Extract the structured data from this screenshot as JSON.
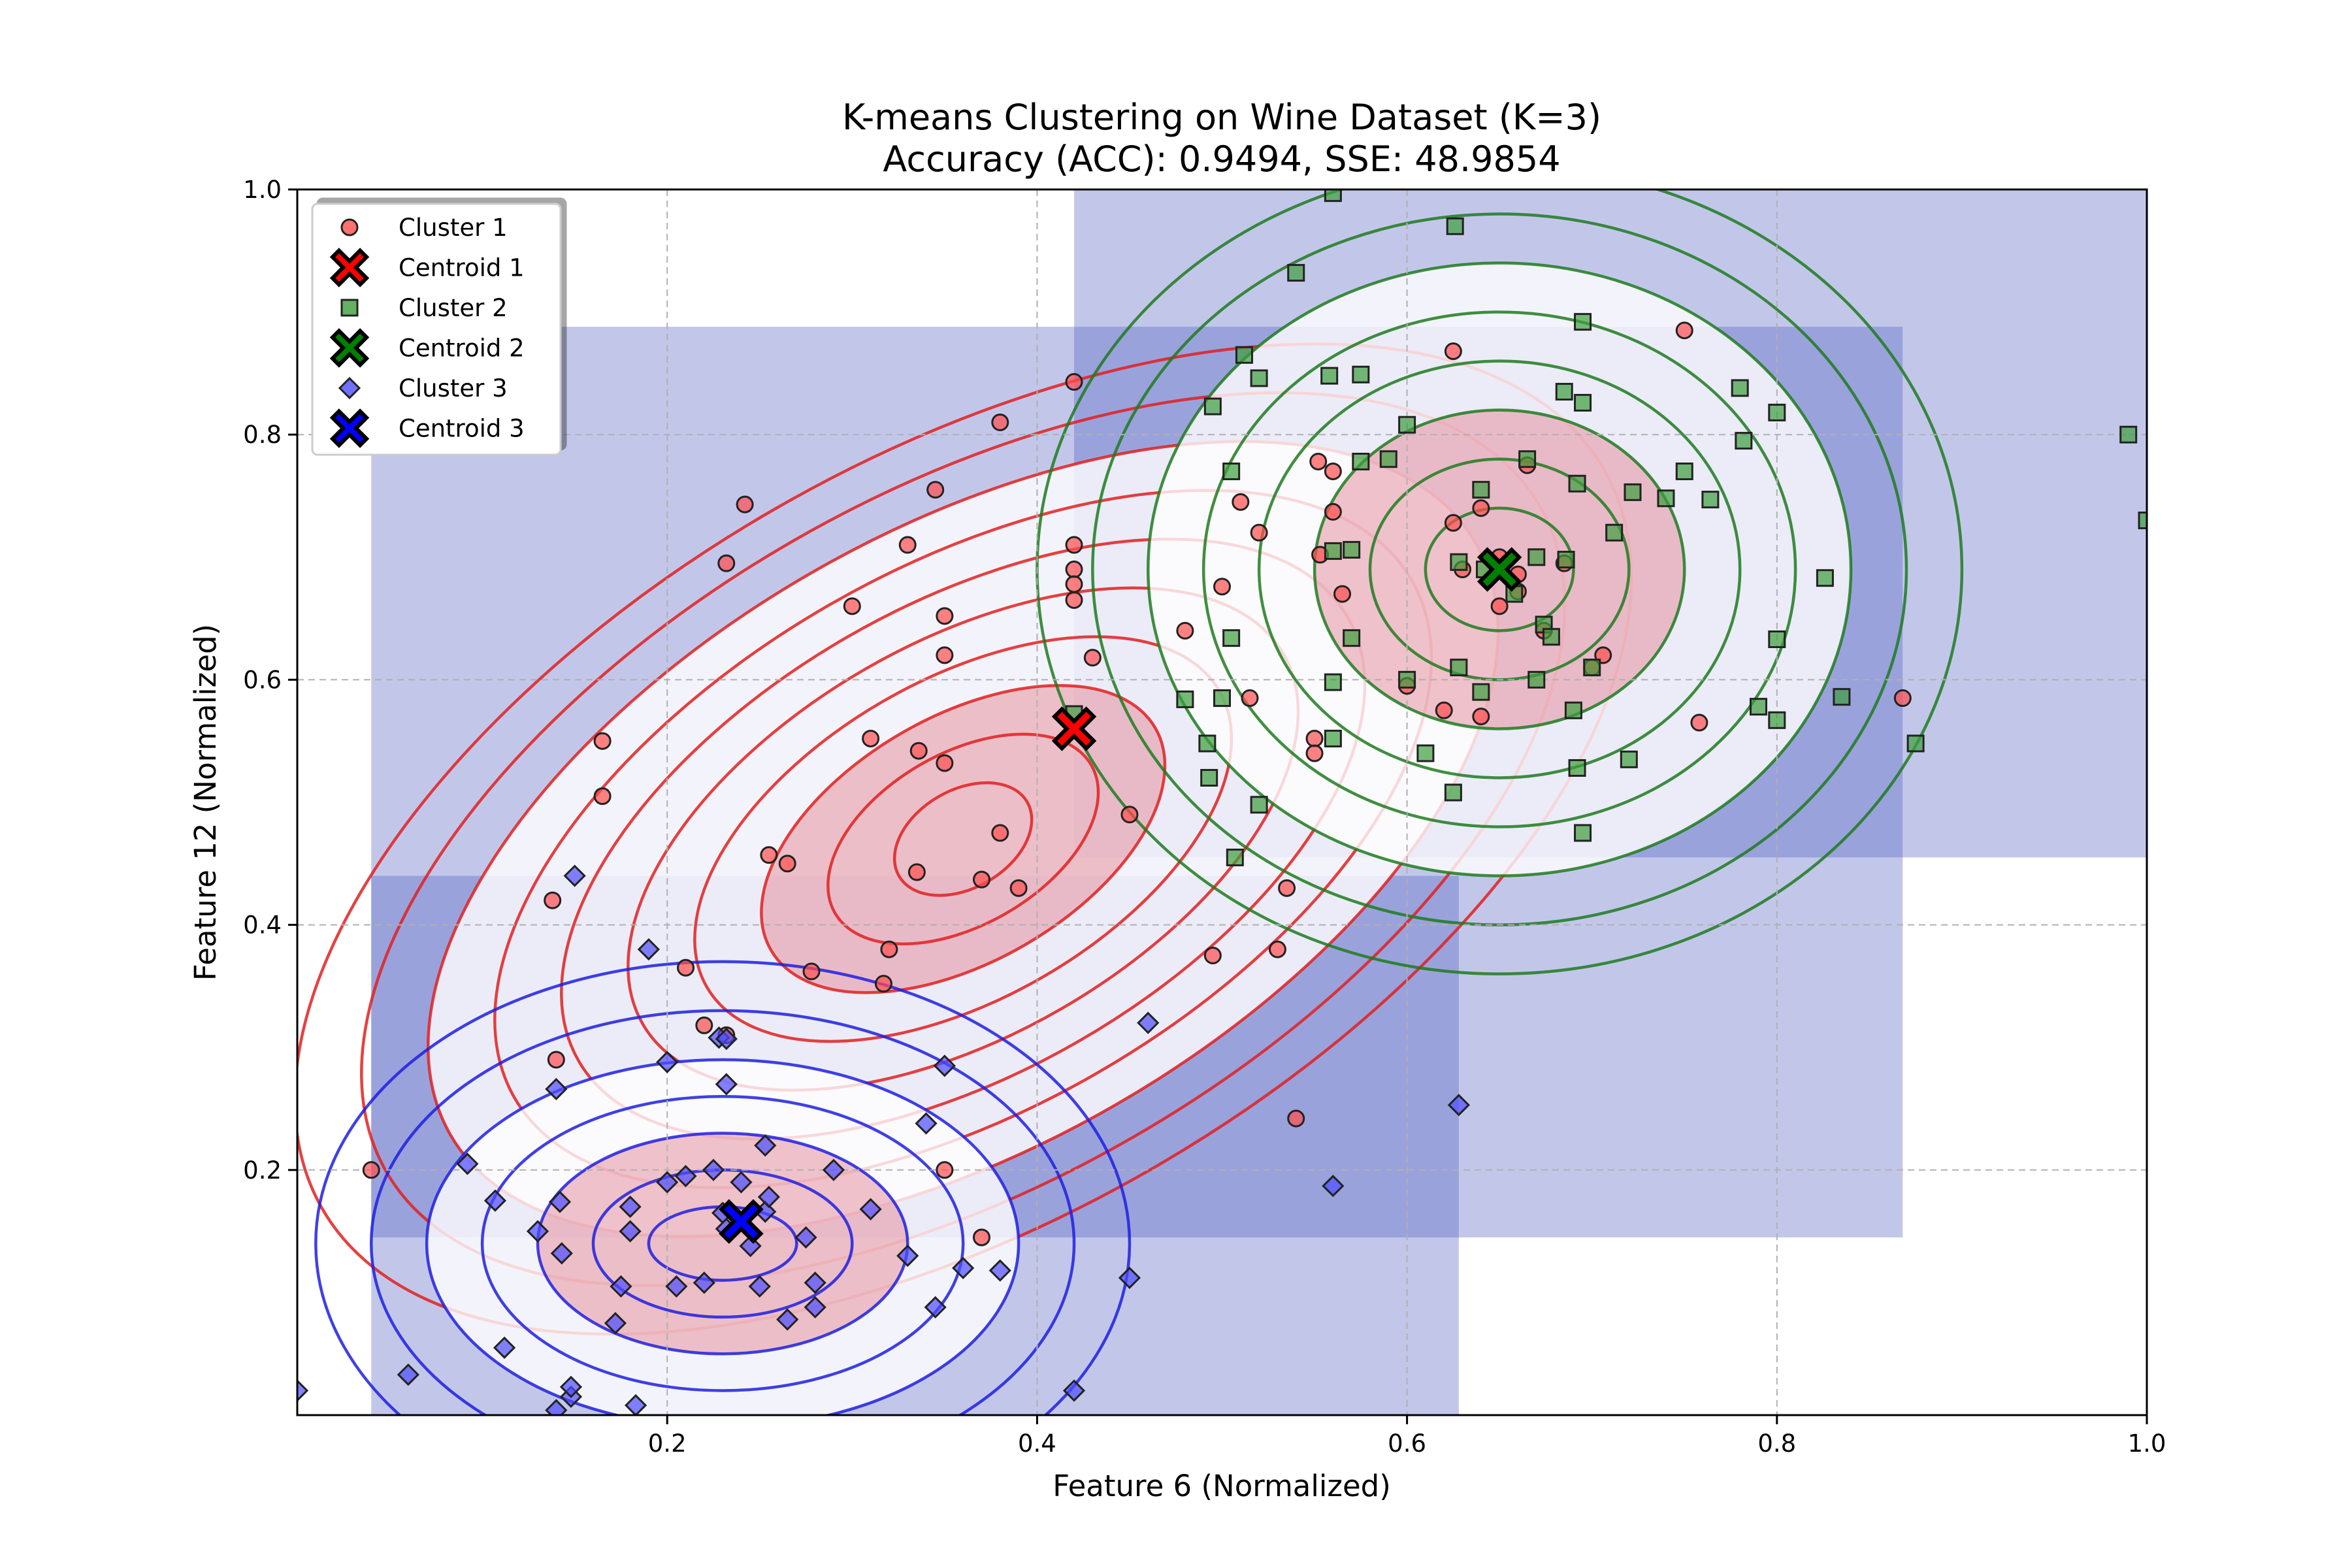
{
  "chart_data": {
    "type": "scatter",
    "title": "K-means Clustering on Wine Dataset (K=3)",
    "subtitle": "Accuracy (ACC): 0.9494, SSE: 48.9854",
    "xlabel": "Feature 6 (Normalized)",
    "ylabel": "Feature 12 (Normalized)",
    "xlim": [
      0,
      1
    ],
    "ylim": [
      0,
      1
    ],
    "x_ticks": [
      "0.2",
      "0.4",
      "0.6",
      "0.8",
      "1.0"
    ],
    "y_ticks": [
      "0.2",
      "0.4",
      "0.6",
      "0.8",
      "1.0"
    ],
    "grid": true,
    "legend_position": "top-left",
    "colors": {
      "cluster_1": "#ff4d4d",
      "cluster_2": "#3d9e3d",
      "cluster_3": "#4d4dff",
      "centroid_1": "#ff0000",
      "centroid_2": "#008000",
      "centroid_3": "#0000ff",
      "region": "#4f5fc2",
      "density_fill": "#e6919f"
    },
    "regions": [
      {
        "x": [
          0.04,
          0.42
        ],
        "y": [
          0.145,
          0.888
        ]
      },
      {
        "x": [
          0.04,
          0.628
        ],
        "y": [
          0.0,
          0.44
        ]
      },
      {
        "x": [
          0.42,
          1.0
        ],
        "y": [
          0.455,
          1.0
        ]
      },
      {
        "x": [
          0.42,
          0.868
        ],
        "y": [
          0.145,
          0.888
        ]
      }
    ],
    "series": [
      {
        "name": "Cluster 1",
        "marker": "circle",
        "points": [
          [
            0.04,
            0.2
          ],
          [
            0.14,
            0.29
          ],
          [
            0.138,
            0.42
          ],
          [
            0.165,
            0.55
          ],
          [
            0.165,
            0.505
          ],
          [
            0.21,
            0.365
          ],
          [
            0.22,
            0.318
          ],
          [
            0.232,
            0.31
          ],
          [
            0.232,
            0.695
          ],
          [
            0.242,
            0.743
          ],
          [
            0.255,
            0.457
          ],
          [
            0.265,
            0.45
          ],
          [
            0.278,
            0.362
          ],
          [
            0.3,
            0.66
          ],
          [
            0.31,
            0.552
          ],
          [
            0.317,
            0.352
          ],
          [
            0.32,
            0.38
          ],
          [
            0.33,
            0.71
          ],
          [
            0.335,
            0.443
          ],
          [
            0.336,
            0.542
          ],
          [
            0.345,
            0.755
          ],
          [
            0.35,
            0.62
          ],
          [
            0.35,
            0.652
          ],
          [
            0.35,
            0.532
          ],
          [
            0.35,
            0.2
          ],
          [
            0.37,
            0.145
          ],
          [
            0.37,
            0.437
          ],
          [
            0.38,
            0.475
          ],
          [
            0.38,
            0.81
          ],
          [
            0.39,
            0.43
          ],
          [
            0.42,
            0.843
          ],
          [
            0.42,
            0.71
          ],
          [
            0.42,
            0.69
          ],
          [
            0.42,
            0.678
          ],
          [
            0.42,
            0.665
          ],
          [
            0.43,
            0.618
          ],
          [
            0.45,
            0.49
          ],
          [
            0.48,
            0.64
          ],
          [
            0.495,
            0.375
          ],
          [
            0.5,
            0.676
          ],
          [
            0.51,
            0.745
          ],
          [
            0.515,
            0.585
          ],
          [
            0.52,
            0.72
          ],
          [
            0.53,
            0.38
          ],
          [
            0.535,
            0.43
          ],
          [
            0.54,
            0.242
          ],
          [
            0.55,
            0.552
          ],
          [
            0.55,
            0.54
          ],
          [
            0.552,
            0.778
          ],
          [
            0.553,
            0.702
          ],
          [
            0.56,
            0.737
          ],
          [
            0.56,
            0.77
          ],
          [
            0.565,
            0.67
          ],
          [
            0.6,
            0.595
          ],
          [
            0.62,
            0.575
          ],
          [
            0.625,
            0.728
          ],
          [
            0.63,
            0.69
          ],
          [
            0.64,
            0.57
          ],
          [
            0.64,
            0.74
          ],
          [
            0.65,
            0.66
          ],
          [
            0.65,
            0.7
          ],
          [
            0.66,
            0.686
          ],
          [
            0.66,
            0.672
          ],
          [
            0.665,
            0.775
          ],
          [
            0.674,
            0.64
          ],
          [
            0.685,
            0.695
          ],
          [
            0.7,
            0.61
          ],
          [
            0.706,
            0.62
          ],
          [
            0.75,
            0.885
          ],
          [
            0.758,
            0.565
          ],
          [
            0.868,
            0.585
          ],
          [
            0.625,
            0.868
          ]
        ]
      },
      {
        "name": "Cluster 2",
        "marker": "square",
        "points": [
          [
            0.42,
            0.572
          ],
          [
            0.48,
            0.584
          ],
          [
            0.492,
            0.548
          ],
          [
            0.493,
            0.52
          ],
          [
            0.495,
            0.823
          ],
          [
            0.5,
            0.585
          ],
          [
            0.505,
            0.634
          ],
          [
            0.505,
            0.77
          ],
          [
            0.507,
            0.455
          ],
          [
            0.512,
            0.865
          ],
          [
            0.52,
            0.846
          ],
          [
            0.52,
            0.498
          ],
          [
            0.54,
            0.932
          ],
          [
            0.558,
            0.848
          ],
          [
            0.56,
            0.997
          ],
          [
            0.56,
            0.705
          ],
          [
            0.56,
            0.552
          ],
          [
            0.56,
            0.598
          ],
          [
            0.57,
            0.706
          ],
          [
            0.57,
            0.634
          ],
          [
            0.575,
            0.778
          ],
          [
            0.575,
            0.849
          ],
          [
            0.59,
            0.78
          ],
          [
            0.6,
            0.808
          ],
          [
            0.6,
            0.6
          ],
          [
            0.61,
            0.54
          ],
          [
            0.625,
            0.508
          ],
          [
            0.626,
            0.97
          ],
          [
            0.628,
            0.61
          ],
          [
            0.628,
            0.696
          ],
          [
            0.64,
            0.755
          ],
          [
            0.64,
            0.59
          ],
          [
            0.642,
            0.69
          ],
          [
            0.658,
            0.67
          ],
          [
            0.665,
            0.78
          ],
          [
            0.67,
            0.6
          ],
          [
            0.67,
            0.7
          ],
          [
            0.674,
            0.645
          ],
          [
            0.678,
            0.635
          ],
          [
            0.685,
            0.835
          ],
          [
            0.686,
            0.698
          ],
          [
            0.69,
            0.575
          ],
          [
            0.692,
            0.76
          ],
          [
            0.692,
            0.528
          ],
          [
            0.695,
            0.892
          ],
          [
            0.695,
            0.826
          ],
          [
            0.7,
            0.61
          ],
          [
            0.712,
            0.72
          ],
          [
            0.72,
            0.535
          ],
          [
            0.722,
            0.753
          ],
          [
            0.74,
            0.748
          ],
          [
            0.75,
            0.77
          ],
          [
            0.764,
            0.747
          ],
          [
            0.78,
            0.838
          ],
          [
            0.782,
            0.795
          ],
          [
            0.79,
            0.578
          ],
          [
            0.8,
            0.567
          ],
          [
            0.8,
            0.818
          ],
          [
            0.8,
            0.633
          ],
          [
            0.826,
            0.683
          ],
          [
            0.835,
            0.586
          ],
          [
            0.875,
            0.548
          ],
          [
            0.99,
            0.8
          ],
          [
            1.0,
            0.73
          ],
          [
            0.695,
            0.475
          ]
        ]
      },
      {
        "name": "Cluster 3",
        "marker": "diamond",
        "points": [
          [
            0.0,
            0.02
          ],
          [
            0.06,
            0.033
          ],
          [
            0.092,
            0.205
          ],
          [
            0.107,
            0.175
          ],
          [
            0.112,
            0.055
          ],
          [
            0.13,
            0.15
          ],
          [
            0.14,
            0.266
          ],
          [
            0.14,
            0.004
          ],
          [
            0.142,
            0.174
          ],
          [
            0.143,
            0.132
          ],
          [
            0.148,
            0.015
          ],
          [
            0.148,
            0.023
          ],
          [
            0.15,
            0.44
          ],
          [
            0.172,
            0.075
          ],
          [
            0.175,
            0.105
          ],
          [
            0.18,
            0.15
          ],
          [
            0.18,
            0.17
          ],
          [
            0.183,
            0.008
          ],
          [
            0.19,
            0.38
          ],
          [
            0.2,
            0.19
          ],
          [
            0.2,
            0.288
          ],
          [
            0.205,
            0.105
          ],
          [
            0.21,
            0.195
          ],
          [
            0.22,
            0.108
          ],
          [
            0.225,
            0.2
          ],
          [
            0.228,
            0.308
          ],
          [
            0.23,
            0.165
          ],
          [
            0.232,
            0.307
          ],
          [
            0.232,
            0.27
          ],
          [
            0.232,
            0.152
          ],
          [
            0.24,
            0.19
          ],
          [
            0.245,
            0.138
          ],
          [
            0.25,
            0.105
          ],
          [
            0.253,
            0.166
          ],
          [
            0.253,
            0.22
          ],
          [
            0.255,
            0.178
          ],
          [
            0.265,
            0.078
          ],
          [
            0.275,
            0.145
          ],
          [
            0.28,
            0.088
          ],
          [
            0.28,
            0.108
          ],
          [
            0.29,
            0.2
          ],
          [
            0.31,
            0.168
          ],
          [
            0.33,
            0.13
          ],
          [
            0.34,
            0.238
          ],
          [
            0.345,
            0.088
          ],
          [
            0.35,
            0.285
          ],
          [
            0.36,
            0.12
          ],
          [
            0.38,
            0.118
          ],
          [
            0.42,
            0.02
          ],
          [
            0.45,
            0.112
          ],
          [
            0.46,
            0.32
          ],
          [
            0.56,
            0.187
          ],
          [
            0.628,
            0.253
          ]
        ]
      }
    ],
    "centroids": [
      {
        "name": "Centroid 1",
        "x": 0.42,
        "y": 0.56
      },
      {
        "name": "Centroid 2",
        "x": 0.65,
        "y": 0.69
      },
      {
        "name": "Centroid 3",
        "x": 0.24,
        "y": 0.158
      }
    ],
    "density_contours": [
      {
        "series": "Cluster 1",
        "cx": 0.36,
        "cy": 0.47,
        "rx": [
          0.04,
          0.08,
          0.12,
          0.16,
          0.2,
          0.24,
          0.28,
          0.32,
          0.36,
          0.4
        ],
        "ry": [
          0.04,
          0.07,
          0.1,
          0.13,
          0.16,
          0.19,
          0.22,
          0.25,
          0.28,
          0.31
        ],
        "angle": -30
      },
      {
        "series": "Cluster 2",
        "cx": 0.65,
        "cy": 0.69,
        "rx": [
          0.04,
          0.07,
          0.1,
          0.13,
          0.16,
          0.19,
          0.22,
          0.25
        ],
        "ry": [
          0.05,
          0.09,
          0.13,
          0.17,
          0.21,
          0.25,
          0.29,
          0.33
        ],
        "angle": 0
      },
      {
        "series": "Cluster 3",
        "cx": 0.23,
        "cy": 0.14,
        "rx": [
          0.04,
          0.07,
          0.1,
          0.13,
          0.16,
          0.19,
          0.22
        ],
        "ry": [
          0.03,
          0.06,
          0.09,
          0.12,
          0.15,
          0.19,
          0.23
        ],
        "angle": 0
      }
    ]
  }
}
